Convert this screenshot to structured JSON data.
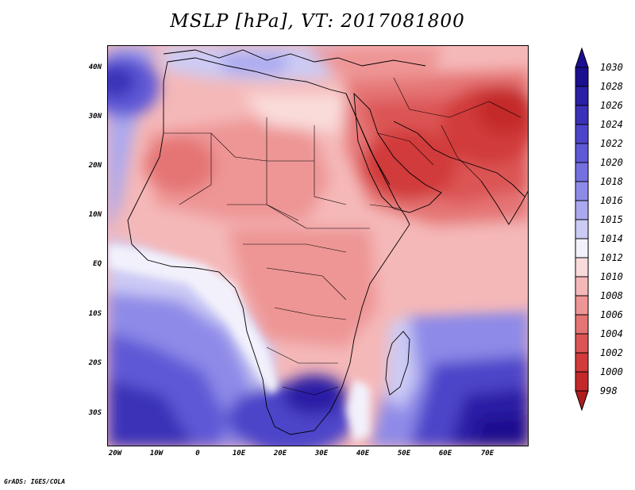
{
  "title": "MSLP [hPa], VT: 2017081800",
  "map": {
    "variable": "MSLP",
    "units": "hPa",
    "valid_time": "2017081800",
    "region": "Africa and Middle East"
  },
  "lat_labels": [
    "40N",
    "30N",
    "20N",
    "10N",
    "EQ",
    "10S",
    "20S",
    "30S"
  ],
  "lon_labels": [
    "20W",
    "10W",
    "0",
    "10E",
    "20E",
    "30E",
    "40E",
    "50E",
    "60E",
    "70E"
  ],
  "colorbar": {
    "labels": [
      "1030",
      "1028",
      "1026",
      "1024",
      "1022",
      "1020",
      "1018",
      "1016",
      "1015",
      "1014",
      "1012",
      "1010",
      "1008",
      "1006",
      "1004",
      "1002",
      "1000",
      "998"
    ],
    "colors": [
      "#1a0f8f",
      "#2a1fa5",
      "#3b31b8",
      "#4d45c9",
      "#5f59d6",
      "#7570df",
      "#8e8ae8",
      "#aaa8ef",
      "#cccbf5",
      "#f2f1fb",
      "#fadbdb",
      "#f5b8b8",
      "#ee9595",
      "#e57474",
      "#dc5555",
      "#d13b3b",
      "#c42929",
      "#b01c1c"
    ]
  },
  "credit": "GrADS: IGES/COLA"
}
